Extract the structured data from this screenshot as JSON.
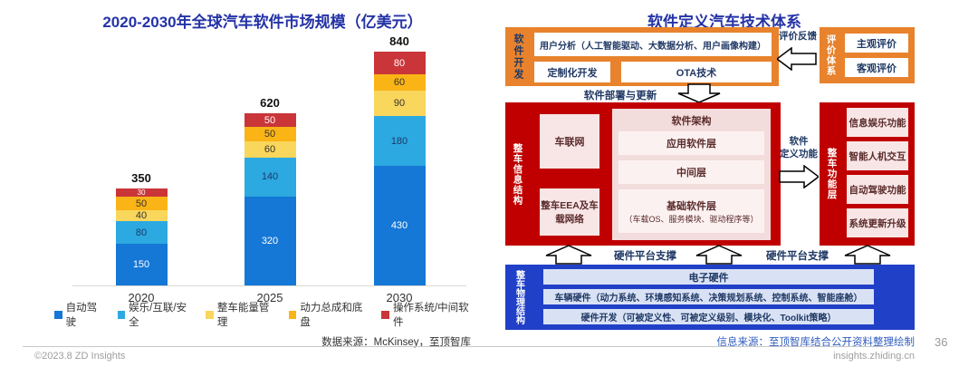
{
  "chart": {
    "source": "数据来源：McKinsey，至顶智库"
  },
  "chart_data": {
    "type": "bar",
    "stacked": true,
    "title": "2020-2030年全球汽车软件市场规模（亿美元）",
    "categories": [
      "2020",
      "2025",
      "2030"
    ],
    "series": [
      {
        "name": "自动驾驶",
        "color": "#1577D6",
        "label_color": "#ffffff",
        "values": [
          150,
          320,
          430
        ]
      },
      {
        "name": "娱乐/互联/安全",
        "color": "#2CA9E1",
        "label_color": "#1b3a6b",
        "values": [
          80,
          140,
          180
        ]
      },
      {
        "name": "整车能量管理",
        "color": "#F9D65C",
        "label_color": "#333333",
        "values": [
          40,
          60,
          90
        ]
      },
      {
        "name": "动力总成和底盘",
        "color": "#FBB415",
        "label_color": "#333333",
        "values": [
          50,
          50,
          60
        ]
      },
      {
        "name": "操作系统/中间软件",
        "color": "#C93539",
        "label_color": "#ffffff",
        "values": [
          30,
          50,
          80
        ]
      }
    ],
    "totals": [
      350,
      620,
      840
    ],
    "xlabel": "",
    "ylabel": "",
    "ylim": [
      0,
      900
    ],
    "grid": false,
    "legend_position": "bottom"
  },
  "diagram": {
    "title": "软件定义汽车技术体系",
    "source": "信息来源：至顶智库结合公开资料整理绘制",
    "software_dev": {
      "label": "软件开发",
      "user_analysis": "用户分析（人工智能驱动、大数据分析、用户画像构建）",
      "custom_dev": "定制化开发",
      "ota": "OTA技术"
    },
    "evaluation": {
      "feedback_label": "评价反馈",
      "label": "评价体系",
      "subjective": "主观评价",
      "objective": "客观评价"
    },
    "deploy_label": "软件部署与更新",
    "info_structure": {
      "label": "整车信息结构",
      "telematics": "车联网",
      "eea": "整车EEA及车载网络",
      "architecture_title": "软件架构",
      "app_layer": "应用软件层",
      "middle_layer": "中间层",
      "base_layer": "基础软件层",
      "base_layer_note": "（车载OS、服务模块、驱动程序等）"
    },
    "sdf_label_line1": "软件",
    "sdf_label_line2": "定义功能",
    "function_layer": {
      "label": "整车功能层",
      "items": [
        "信息娱乐功能",
        "智能人机交互",
        "自动驾驶功能",
        "系统更新升级"
      ]
    },
    "hw_support_left": "硬件平台支撑",
    "hw_support_right": "硬件平台支撑",
    "physical": {
      "label": "整车物理结构",
      "rows": [
        "电子硬件",
        "车辆硬件（动力系统、环境感知系统、决策规划系统、控制系统、智能座舱）",
        "硬件开发（可被定义性、可被定义级别、模块化、Toolkit策略）"
      ]
    }
  },
  "footer": {
    "copyright": "©2023.8 ZD Insights",
    "site": "insights.zhiding.cn",
    "page_number": "36"
  }
}
